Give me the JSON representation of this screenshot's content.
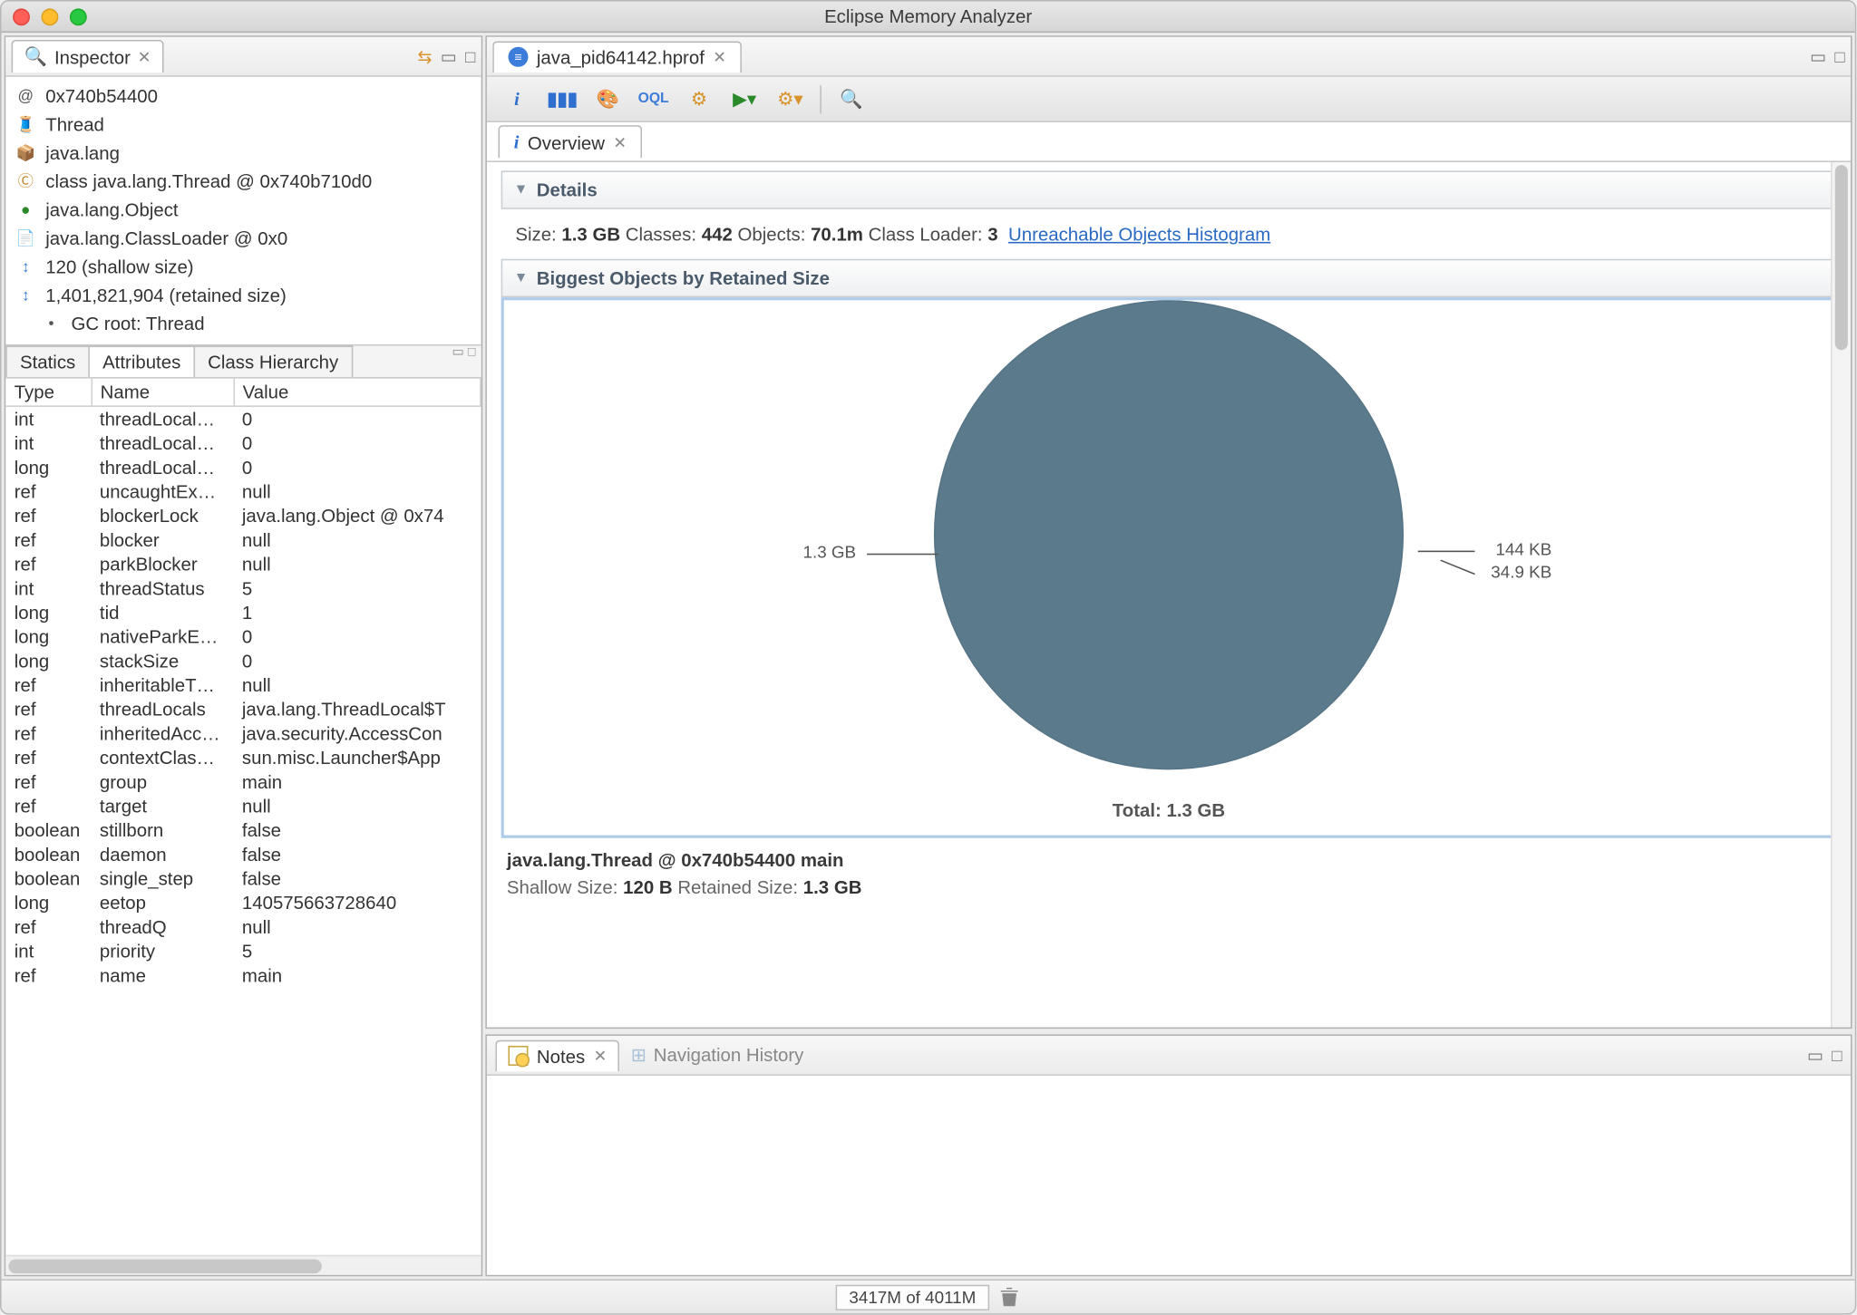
{
  "window": {
    "title": "Eclipse Memory Analyzer"
  },
  "inspector": {
    "tab_label": "Inspector",
    "tree": [
      {
        "icon": "@",
        "text": "0x740b54400"
      },
      {
        "icon": "thread",
        "text": "Thread"
      },
      {
        "icon": "pkg",
        "text": "java.lang"
      },
      {
        "icon": "class",
        "text": "class java.lang.Thread @ 0x740b710d0"
      },
      {
        "icon": "obj",
        "text": "java.lang.Object"
      },
      {
        "icon": "cl",
        "text": "java.lang.ClassLoader @ 0x0"
      },
      {
        "icon": "size",
        "text": "120 (shallow size)"
      },
      {
        "icon": "size",
        "text": "1,401,821,904 (retained size)"
      },
      {
        "icon": "gc",
        "text": "GC root: Thread",
        "indent": true
      }
    ],
    "sub_tabs": {
      "statics": "Statics",
      "attributes": "Attributes",
      "class_hierarchy": "Class Hierarchy"
    },
    "columns": {
      "type": "Type",
      "name": "Name",
      "value": "Value"
    },
    "rows": [
      [
        "int",
        "threadLocal…",
        "0"
      ],
      [
        "int",
        "threadLocal…",
        "0"
      ],
      [
        "long",
        "threadLocal…",
        "0"
      ],
      [
        "ref",
        "uncaughtEx…",
        "null"
      ],
      [
        "ref",
        "blockerLock",
        "java.lang.Object @ 0x74"
      ],
      [
        "ref",
        "blocker",
        "null"
      ],
      [
        "ref",
        "parkBlocker",
        "null"
      ],
      [
        "int",
        "threadStatus",
        "5"
      ],
      [
        "long",
        "tid",
        "1"
      ],
      [
        "long",
        "nativeParkE…",
        "0"
      ],
      [
        "long",
        "stackSize",
        "0"
      ],
      [
        "ref",
        "inheritableT…",
        "null"
      ],
      [
        "ref",
        "threadLocals",
        "java.lang.ThreadLocal$T"
      ],
      [
        "ref",
        "inheritedAcc…",
        "java.security.AccessCon"
      ],
      [
        "ref",
        "contextClas…",
        "sun.misc.Launcher$App"
      ],
      [
        "ref",
        "group",
        "main"
      ],
      [
        "ref",
        "target",
        "null"
      ],
      [
        "boolean",
        "stillborn",
        "false"
      ],
      [
        "boolean",
        "daemon",
        "false"
      ],
      [
        "boolean",
        "single_step",
        "false"
      ],
      [
        "long",
        "eetop",
        "140575663728640"
      ],
      [
        "ref",
        "threadQ",
        "null"
      ],
      [
        "int",
        "priority",
        "5"
      ],
      [
        "ref",
        "name",
        "main"
      ]
    ]
  },
  "editor": {
    "tab_label": "java_pid64142.hprof",
    "overview_tab": "Overview",
    "details": {
      "header": "Details",
      "size_label": "Size:",
      "size_value": "1.3 GB",
      "classes_label": "Classes:",
      "classes_value": "442",
      "objects_label": "Objects:",
      "objects_value": "70.1m",
      "classloader_label": "Class Loader:",
      "classloader_value": "3",
      "link": "Unreachable Objects Histogram"
    },
    "biggest": {
      "header": "Biggest Objects by Retained Size",
      "chart": {
        "type": "pie",
        "slices": [
          {
            "label": "1.3 GB",
            "value": 1401821904,
            "color": "#5b7b8d"
          },
          {
            "label": "144 KB",
            "value": 147456,
            "color": "#6f8ea0"
          },
          {
            "label": "34.9 KB",
            "value": 35738,
            "color": "#7d99a9"
          }
        ],
        "total_label": "Total: 1.3 GB",
        "background": "#ffffff",
        "border_color": "#aeccea"
      },
      "caption_object": "java.lang.Thread @ 0x740b54400 main",
      "shallow_label": "Shallow Size:",
      "shallow_value": "120 B",
      "retained_label": "Retained Size:",
      "retained_value": "1.3 GB"
    }
  },
  "bottom": {
    "notes_tab": "Notes",
    "nav_history": "Navigation History"
  },
  "status": {
    "memory": "3417M of 4011M"
  },
  "colors": {
    "pie_main": "#5b7b8d",
    "link": "#2a6ac2",
    "section_text": "#4a5a6a"
  }
}
